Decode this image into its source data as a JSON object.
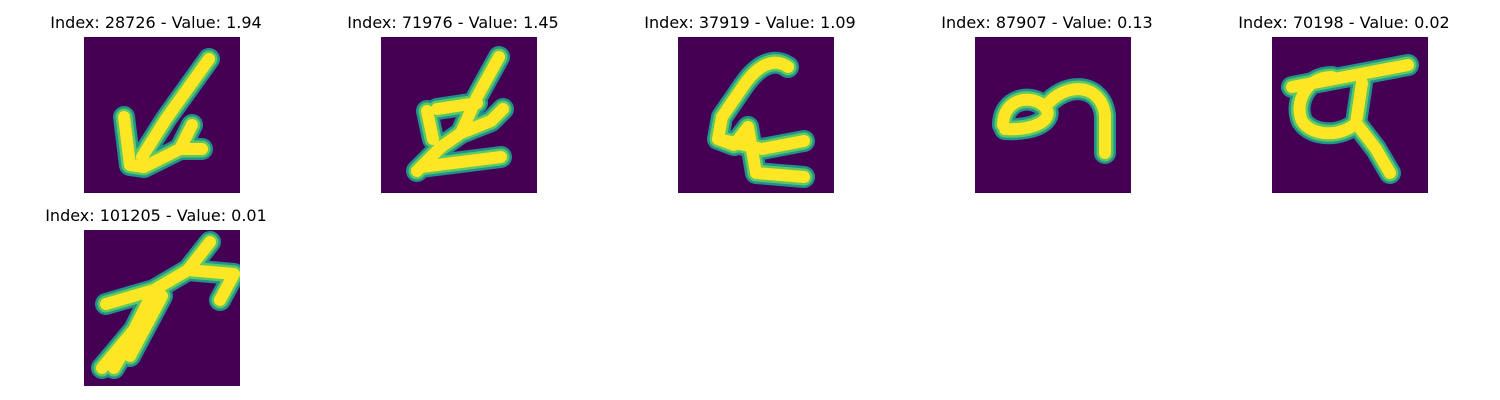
{
  "figure": {
    "background": "#440154",
    "stroke_outer": "#21918c",
    "stroke_mid": "#5ec962",
    "stroke_core": "#fde725",
    "panels": [
      {
        "title": "Index: 28726 - Value: 1.94",
        "glyph": "arrow-down-left-glyph"
      },
      {
        "title": "Index: 71976 - Value: 1.45",
        "glyph": "looped-slash-glyph"
      },
      {
        "title": "Index: 37919 - Value: 1.09",
        "glyph": "looped-hook-glyph"
      },
      {
        "title": "Index: 87907 - Value: 0.13",
        "glyph": "curl-glyph"
      },
      {
        "title": "Index: 70198 - Value: 0.02",
        "glyph": "loop-tail-glyph"
      },
      {
        "title": "Index: 101205 - Value: 0.01",
        "glyph": "splatter-glyph"
      }
    ]
  }
}
